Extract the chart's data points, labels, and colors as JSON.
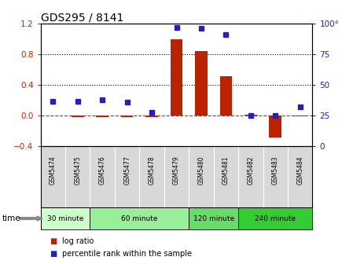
{
  "title": "GDS295 / 8141",
  "samples": [
    "GSM5474",
    "GSM5475",
    "GSM5476",
    "GSM5477",
    "GSM5478",
    "GSM5479",
    "GSM5480",
    "GSM5481",
    "GSM5482",
    "GSM5483",
    "GSM5484"
  ],
  "log_ratio": [
    0.0,
    -0.02,
    -0.02,
    -0.02,
    -0.02,
    1.0,
    0.84,
    0.52,
    0.01,
    -0.28,
    -0.01
  ],
  "percentile": [
    37,
    37,
    38,
    36,
    28,
    97,
    96,
    91,
    25,
    25,
    32
  ],
  "ylim_left": [
    -0.4,
    1.2
  ],
  "ylim_right": [
    0,
    100
  ],
  "yticks_left": [
    -0.4,
    0.0,
    0.4,
    0.8,
    1.2
  ],
  "yticks_right": [
    0,
    25,
    50,
    75,
    100
  ],
  "dotted_lines": [
    0.4,
    0.8
  ],
  "bar_color": "#BB2200",
  "dot_color": "#2222BB",
  "dashed_line_color": "#CC2200",
  "bg_color": "#FFFFFF",
  "time_groups": [
    {
      "label": "30 minute",
      "start": 0,
      "end": 2,
      "color": "#CCFFCC"
    },
    {
      "label": "60 minute",
      "start": 2,
      "end": 6,
      "color": "#99EE99"
    },
    {
      "label": "120 minute",
      "start": 6,
      "end": 8,
      "color": "#66DD66"
    },
    {
      "label": "240 minute",
      "start": 8,
      "end": 11,
      "color": "#33CC33"
    }
  ],
  "legend_log_ratio": "log ratio",
  "legend_percentile": "percentile rank within the sample",
  "time_label": "time",
  "label_color_left": "#CC2200",
  "label_color_right": "#2222BB",
  "bar_width": 0.5,
  "sample_bg": "#D8D8D8"
}
